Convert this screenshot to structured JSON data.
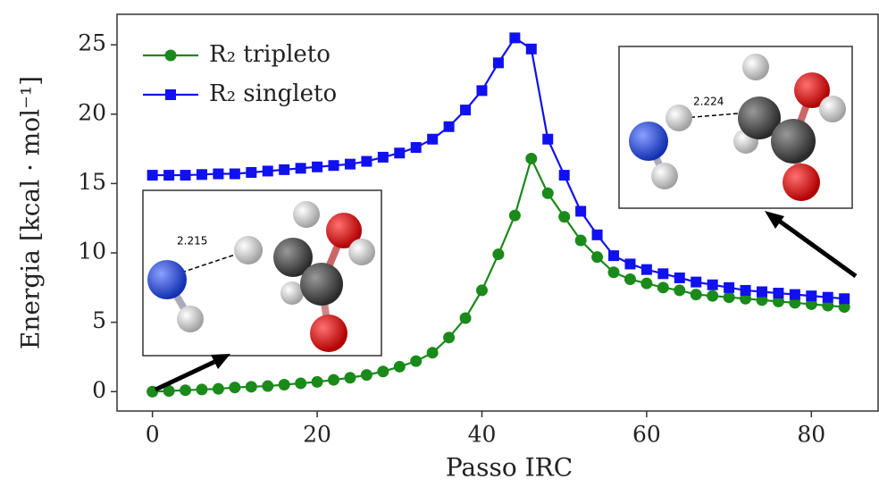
{
  "chart_data": {
    "type": "line",
    "xlabel": "Passo IRC",
    "ylabel": "Energia [kcal · mol⁻¹]",
    "x": [
      0,
      2,
      4,
      6,
      8,
      10,
      12,
      14,
      16,
      18,
      20,
      22,
      24,
      26,
      28,
      30,
      32,
      34,
      36,
      38,
      40,
      42,
      44,
      46,
      48,
      50,
      52,
      54,
      56,
      58,
      60,
      62,
      64,
      66,
      68,
      70,
      72,
      74,
      76,
      78,
      80,
      82,
      84
    ],
    "series": [
      {
        "name": "R₂ tripleto",
        "color": "#1a8a1a",
        "marker": "circle",
        "values": [
          0,
          0.05,
          0.1,
          0.15,
          0.2,
          0.3,
          0.35,
          0.4,
          0.5,
          0.6,
          0.7,
          0.85,
          1.0,
          1.2,
          1.45,
          1.8,
          2.2,
          2.8,
          3.9,
          5.3,
          7.3,
          9.9,
          12.7,
          16.8,
          14.3,
          12.6,
          10.9,
          9.7,
          8.6,
          8.1,
          7.8,
          7.5,
          7.3,
          7.0,
          6.9,
          6.8,
          6.7,
          6.6,
          6.5,
          6.4,
          6.3,
          6.2,
          6.1
        ]
      },
      {
        "name": "R₂ singleto",
        "color": "#1010f0",
        "marker": "square",
        "values": [
          15.6,
          15.6,
          15.6,
          15.65,
          15.7,
          15.7,
          15.8,
          15.9,
          16.0,
          16.1,
          16.2,
          16.3,
          16.4,
          16.6,
          16.9,
          17.2,
          17.6,
          18.2,
          19.1,
          20.3,
          21.7,
          23.7,
          25.5,
          24.7,
          18.2,
          15.6,
          13.0,
          11.3,
          9.8,
          9.2,
          8.8,
          8.5,
          8.2,
          7.9,
          7.7,
          7.5,
          7.3,
          7.2,
          7.1,
          7.0,
          6.9,
          6.8,
          6.7
        ]
      }
    ],
    "xlim": [
      -4.3,
      88.1
    ],
    "ylim": [
      -1.4,
      27.2
    ],
    "xticks": [
      0,
      20,
      40,
      60,
      80
    ],
    "yticks": [
      0,
      5,
      10,
      15,
      20,
      25
    ],
    "legend": "upper left",
    "annotations": [
      "2.215",
      "2.224"
    ]
  }
}
